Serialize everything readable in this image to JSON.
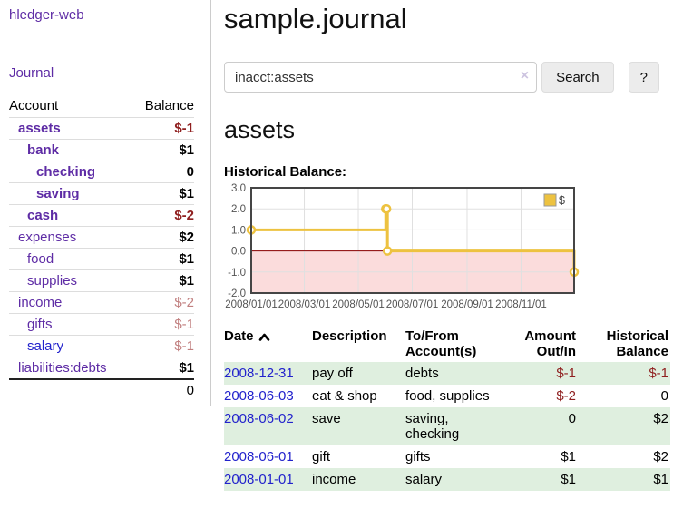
{
  "sidebar": {
    "brand": "hledger-web",
    "journal_link": "Journal",
    "headers": {
      "account": "Account",
      "balance": "Balance"
    },
    "accounts": [
      {
        "name": "assets",
        "balance": "$-1"
      },
      {
        "name": "bank",
        "balance": "$1"
      },
      {
        "name": "checking",
        "balance": "0"
      },
      {
        "name": "saving",
        "balance": "$1"
      },
      {
        "name": "cash",
        "balance": "$-2"
      },
      {
        "name": "expenses",
        "balance": "$2"
      },
      {
        "name": "food",
        "balance": "$1"
      },
      {
        "name": "supplies",
        "balance": "$1"
      },
      {
        "name": "income",
        "balance": "$-2"
      },
      {
        "name": "gifts",
        "balance": "$-1"
      },
      {
        "name": "salary",
        "balance": "$-1"
      },
      {
        "name": "liabilities:debts",
        "balance": "$1"
      }
    ],
    "total": "0"
  },
  "main": {
    "title": "sample.journal",
    "search": {
      "value": "inacct:assets",
      "clear_icon": "×",
      "search_button": "Search",
      "help_button": "?"
    },
    "account_heading": "assets",
    "chart_heading": "Historical Balance:"
  },
  "chart_data": {
    "type": "line",
    "title": "Historical Balance",
    "step": true,
    "series": [
      {
        "name": "$",
        "color": "#edc240",
        "points": [
          [
            "2008-01-01",
            1
          ],
          [
            "2008-06-01",
            2
          ],
          [
            "2008-06-02",
            2
          ],
          [
            "2008-06-03",
            0
          ],
          [
            "2008-12-31",
            -1
          ]
        ]
      }
    ],
    "xlim": [
      "2008-01-01",
      "2008-12-31"
    ],
    "ylim": [
      -2,
      3
    ],
    "yticks": [
      "3.0",
      "2.0",
      "1.0",
      "0.0",
      "-1.0",
      "-2.0"
    ],
    "xticks": [
      "2008/01/01",
      "2008/03/01",
      "2008/05/01",
      "2008/07/01",
      "2008/09/01",
      "2008/11/01"
    ],
    "grid": true,
    "legend_position": "top-right",
    "negative_region_fill": "#fbdcdc",
    "zero_line_color": "#8b0000",
    "grid_color": "#e0e0e0",
    "border_color": "#454545",
    "tick_color": "#545454"
  },
  "register": {
    "headers": {
      "date": "Date",
      "description": "Description",
      "accounts": "To/From Account(s)",
      "amount": "Amount Out/In",
      "balance": "Historical Balance"
    },
    "rows": [
      {
        "date": "2008-12-31",
        "description": "pay off",
        "accounts": "debts",
        "amount": "$-1",
        "balance": "$-1"
      },
      {
        "date": "2008-06-03",
        "description": "eat & shop",
        "accounts": "food, supplies",
        "amount": "$-2",
        "balance": "0"
      },
      {
        "date": "2008-06-02",
        "description": "save",
        "accounts": "saving, checking",
        "amount": "0",
        "balance": "$2"
      },
      {
        "date": "2008-06-01",
        "description": "gift",
        "accounts": "gifts",
        "amount": "$1",
        "balance": "$2"
      },
      {
        "date": "2008-01-01",
        "description": "income",
        "accounts": "salary",
        "amount": "$1",
        "balance": "$1"
      }
    ]
  },
  "colors": {
    "link_visited": "#5e2ca5",
    "link_unvisited": "#2222cc",
    "negative_strong": "#8f1f1f",
    "negative_muted": "#c17f7f",
    "row_alt_green": "#dfefdf",
    "accent_yellow": "#edc240"
  }
}
